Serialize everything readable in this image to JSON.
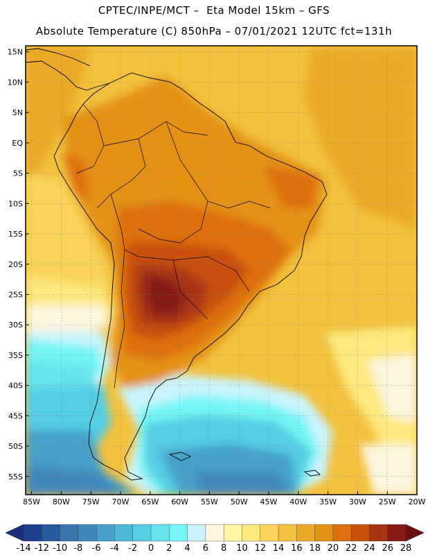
{
  "header": {
    "line1": "CPTEC/INPE/MCT –  Eta Model 15km – GFS",
    "line2": "Absolute Temperature (C) 850hPa – 07/01/2021 12UTC fct=131h"
  },
  "map": {
    "lat_labels": [
      "15N",
      "10N",
      "5N",
      "EQ",
      "5S",
      "10S",
      "15S",
      "20S",
      "25S",
      "30S",
      "35S",
      "40S",
      "45S",
      "50S",
      "55S"
    ],
    "lat_values": [
      15,
      10,
      5,
      0,
      -5,
      -10,
      -15,
      -20,
      -25,
      -30,
      -35,
      -40,
      -45,
      -50,
      -55
    ],
    "lon_labels": [
      "85W",
      "80W",
      "75W",
      "70W",
      "65W",
      "60W",
      "55W",
      "50W",
      "45W",
      "40W",
      "35W",
      "30W",
      "25W",
      "20W"
    ],
    "lon_values": [
      -85,
      -80,
      -75,
      -70,
      -65,
      -60,
      -55,
      -50,
      -45,
      -40,
      -35,
      -30,
      -25,
      -20
    ],
    "extent": {
      "lon_min": -86,
      "lon_max": -20,
      "lat_min": -58,
      "lat_max": 16
    },
    "grid": "dotted"
  },
  "colorbar": {
    "labels": [
      "-14",
      "-12",
      "-10",
      "-8",
      "-6",
      "-4",
      "-2",
      "0",
      "2",
      "4",
      "6",
      "8",
      "10",
      "12",
      "14",
      "16",
      "18",
      "20",
      "22",
      "24",
      "26",
      "28"
    ],
    "colors": [
      "#1f3f8e",
      "#2a5a9e",
      "#3a73ad",
      "#3f88bb",
      "#46a0c8",
      "#4fb8d6",
      "#55cde3",
      "#66e3ee",
      "#75f5f6",
      "#c9f4fb",
      "#fdf5df",
      "#fff6a6",
      "#fde97f",
      "#f8d55a",
      "#f2c13d",
      "#eaa928",
      "#e49117",
      "#dd6f0c",
      "#c8500c",
      "#a93612",
      "#861c13"
    ],
    "min_arrow": "#1a2f7a",
    "max_arrow": "#6b0f12"
  }
}
